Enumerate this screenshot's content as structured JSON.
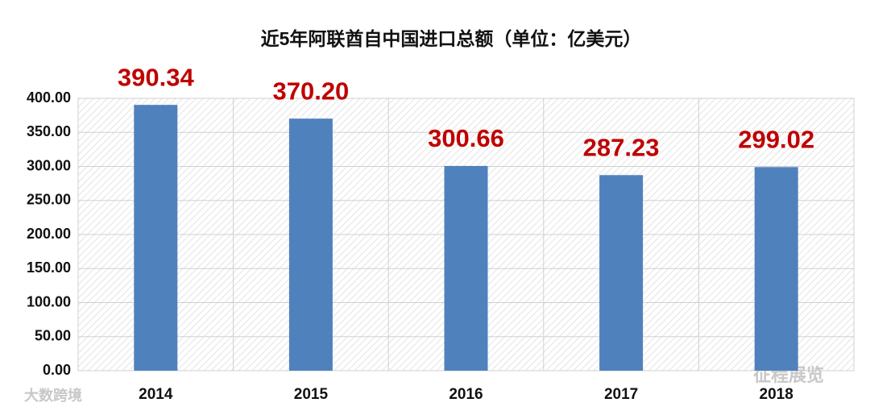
{
  "chart_data": {
    "type": "bar",
    "title": "近5年阿联酋自中国进口总额（单位：亿美元）",
    "categories": [
      "2014",
      "2015",
      "2016",
      "2017",
      "2018"
    ],
    "values": [
      390.34,
      370.2,
      300.66,
      287.23,
      299.02
    ],
    "value_labels": [
      "390.34",
      "370.20",
      "300.66",
      "287.23",
      "299.02"
    ],
    "color": "#4f81bd",
    "label_color": "#c00000",
    "ylim": [
      0,
      400
    ],
    "yticks": [
      {
        "value": 0,
        "label": "0.00"
      },
      {
        "value": 50,
        "label": "50.00"
      },
      {
        "value": 100,
        "label": "100.00"
      },
      {
        "value": 150,
        "label": "150.00"
      },
      {
        "value": 200,
        "label": "200.00"
      },
      {
        "value": 250,
        "label": "250.00"
      },
      {
        "value": 300,
        "label": "300.00"
      },
      {
        "value": 350,
        "label": "350.00"
      },
      {
        "value": 400,
        "label": "400.00"
      }
    ],
    "grid": true
  },
  "watermarks": [
    "大数跨境",
    "征程展览"
  ]
}
